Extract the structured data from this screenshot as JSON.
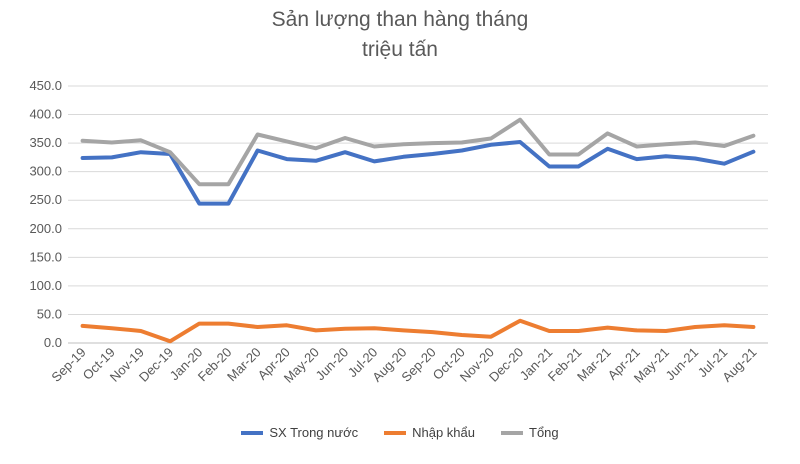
{
  "chart_data": {
    "type": "line",
    "title": "Sản lượng than hàng tháng",
    "subtitle": "triệu tấn",
    "categories": [
      "Sep-19",
      "Oct-19",
      "Nov-19",
      "Dec-19",
      "Jan-20",
      "Feb-20",
      "Mar-20",
      "Apr-20",
      "May-20",
      "Jun-20",
      "Jul-20",
      "Aug-20",
      "Sep-20",
      "Oct-20",
      "Nov-20",
      "Dec-20",
      "Jan-21",
      "Feb-21",
      "Mar-21",
      "Apr-21",
      "May-21",
      "Jun-21",
      "Jul-21",
      "Aug-21"
    ],
    "ylim": [
      0,
      450
    ],
    "yticks": [
      "0.0",
      "50.0",
      "100.0",
      "150.0",
      "200.0",
      "250.0",
      "300.0",
      "350.0",
      "400.0",
      "450.0"
    ],
    "grid": true,
    "legend_position": "bottom",
    "series": [
      {
        "name": "SX Trong nước",
        "color": "#4472C4",
        "values": [
          324,
          325,
          334,
          331,
          244,
          244,
          337,
          322,
          319,
          334,
          318,
          326,
          331,
          337,
          347,
          352,
          309,
          309,
          340,
          322,
          327,
          323,
          314,
          335
        ]
      },
      {
        "name": "Nhập khẩu",
        "color": "#ED7D31",
        "values": [
          30,
          26,
          21,
          3,
          34,
          34,
          28,
          31,
          22,
          25,
          26,
          22,
          19,
          14,
          11,
          39,
          21,
          21,
          27,
          22,
          21,
          28,
          31,
          28
        ]
      },
      {
        "name": "Tổng",
        "color": "#A5A5A5",
        "values": [
          354,
          351,
          355,
          334,
          278,
          278,
          365,
          353,
          341,
          359,
          344,
          348,
          350,
          351,
          358,
          391,
          330,
          330,
          367,
          344,
          348,
          351,
          345,
          363
        ]
      }
    ]
  }
}
